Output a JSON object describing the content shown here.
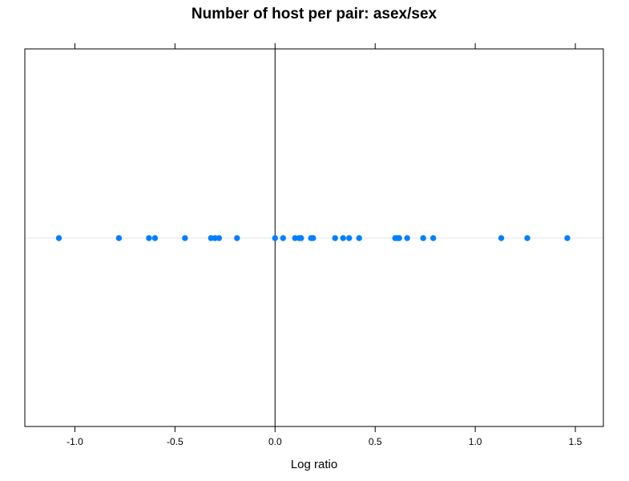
{
  "chart_data": {
    "type": "scatter",
    "title": "Number of host per pair: asex/sex",
    "xlabel": "Log ratio",
    "ylabel": "",
    "xlim": [
      -1.25,
      1.64
    ],
    "xticks": [
      -1.0,
      -0.5,
      0.0,
      0.5,
      1.0,
      1.5
    ],
    "xtick_labels": [
      "-1.0",
      "-0.5",
      "0.0",
      "0.5",
      "1.0",
      "1.5"
    ],
    "reference_line_x": 0.0,
    "grid": false,
    "point_color": "#0080FF",
    "reference_line_color": "#000000",
    "baseline_color": "#E6E6E6",
    "x": [
      -1.08,
      -0.78,
      -0.63,
      -0.6,
      -0.45,
      -0.32,
      -0.3,
      -0.28,
      -0.19,
      0.0,
      0.04,
      0.1,
      0.12,
      0.13,
      0.18,
      0.19,
      0.3,
      0.34,
      0.37,
      0.42,
      0.6,
      0.61,
      0.62,
      0.66,
      0.74,
      0.79,
      1.13,
      1.26,
      1.46
    ]
  }
}
